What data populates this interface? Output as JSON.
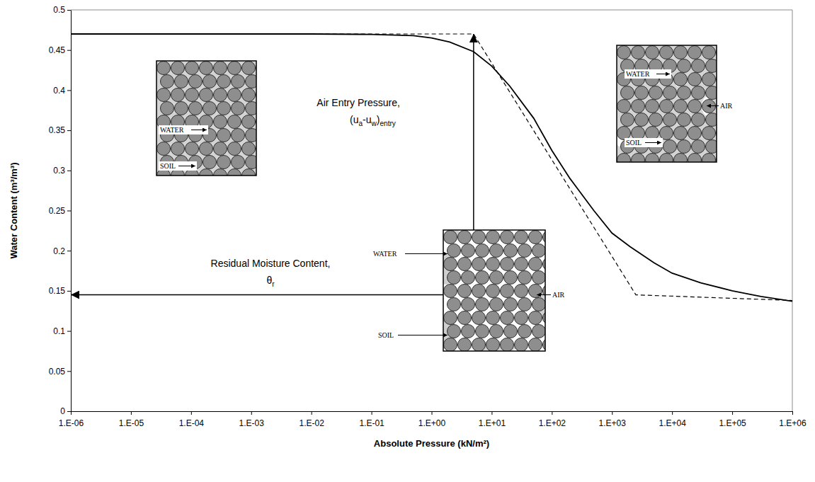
{
  "chart_data": {
    "type": "line",
    "x_label": "Absolute Pressure (kN/m²)",
    "y_label": "Water Content (m³/m³)",
    "log": "x",
    "grid": false,
    "xlim": [
      1e-06,
      1000000.0
    ],
    "xticks": [
      {
        "value": 1e-06,
        "label": "1.E-06"
      },
      {
        "value": 1e-05,
        "label": "1.E-05"
      },
      {
        "value": 0.0001,
        "label": "1.E-04"
      },
      {
        "value": 0.001,
        "label": "1.E-03"
      },
      {
        "value": 0.01,
        "label": "1.E-02"
      },
      {
        "value": 0.1,
        "label": "1.E-01"
      },
      {
        "value": 1,
        "label": "1.E+00"
      },
      {
        "value": 10,
        "label": "1.E+01"
      },
      {
        "value": 100,
        "label": "1.E+02"
      },
      {
        "value": 1000,
        "label": "1.E+03"
      },
      {
        "value": 10000,
        "label": "1.E+04"
      },
      {
        "value": 100000,
        "label": "1.E+05"
      },
      {
        "value": 1000000,
        "label": "1.E+06"
      }
    ],
    "ylim": [
      0,
      0.5
    ],
    "yticks": [
      0,
      0.05,
      0.1,
      0.15,
      0.2,
      0.25,
      0.3,
      0.35,
      0.4,
      0.45,
      0.5
    ],
    "series": [
      {
        "x": [
          1e-06,
          0.001,
          0.01,
          0.1,
          0.5,
          1,
          2,
          5,
          10,
          20,
          50,
          100,
          200,
          500,
          1000,
          2000,
          5000,
          10000,
          30000,
          100000,
          300000,
          1000000
        ],
        "values": [
          0.47,
          0.47,
          0.47,
          0.4695,
          0.468,
          0.465,
          0.46,
          0.448,
          0.43,
          0.405,
          0.365,
          0.325,
          0.29,
          0.25,
          0.222,
          0.205,
          0.185,
          0.172,
          0.16,
          0.15,
          0.143,
          0.137
        ],
        "color": "#000000",
        "line_style": "solid"
      },
      {
        "x": [
          0.01,
          5,
          2500,
          1000000
        ],
        "values": [
          0.47,
          0.47,
          0.145,
          0.138
        ],
        "color": "#000000",
        "line_style": "dashed"
      }
    ],
    "annotations": {
      "air_entry": {
        "lines": [
          [
            {
              "text": "Air Entry Pressure,"
            }
          ],
          [
            {
              "text": "(u"
            },
            {
              "text": "a",
              "sub": true
            },
            {
              "text": "-u"
            },
            {
              "text": "w",
              "sub": true
            },
            {
              "text": ")"
            },
            {
              "text": "entry",
              "sub": true
            }
          ]
        ],
        "x": 5,
        "y": 0.47
      },
      "residual": {
        "lines": [
          [
            {
              "text": "Residual Moisture Content,"
            }
          ],
          [
            {
              "text": "θ"
            },
            {
              "text": "r",
              "sub": true
            }
          ]
        ],
        "y": 0.145
      }
    },
    "insets": [
      {
        "labels": [
          "WATER",
          "SOIL"
        ]
      },
      {
        "labels": [
          "WATER",
          "AIR",
          "SOIL"
        ]
      },
      {
        "labels": [
          "WATER",
          "AIR",
          "SOIL"
        ]
      }
    ]
  }
}
